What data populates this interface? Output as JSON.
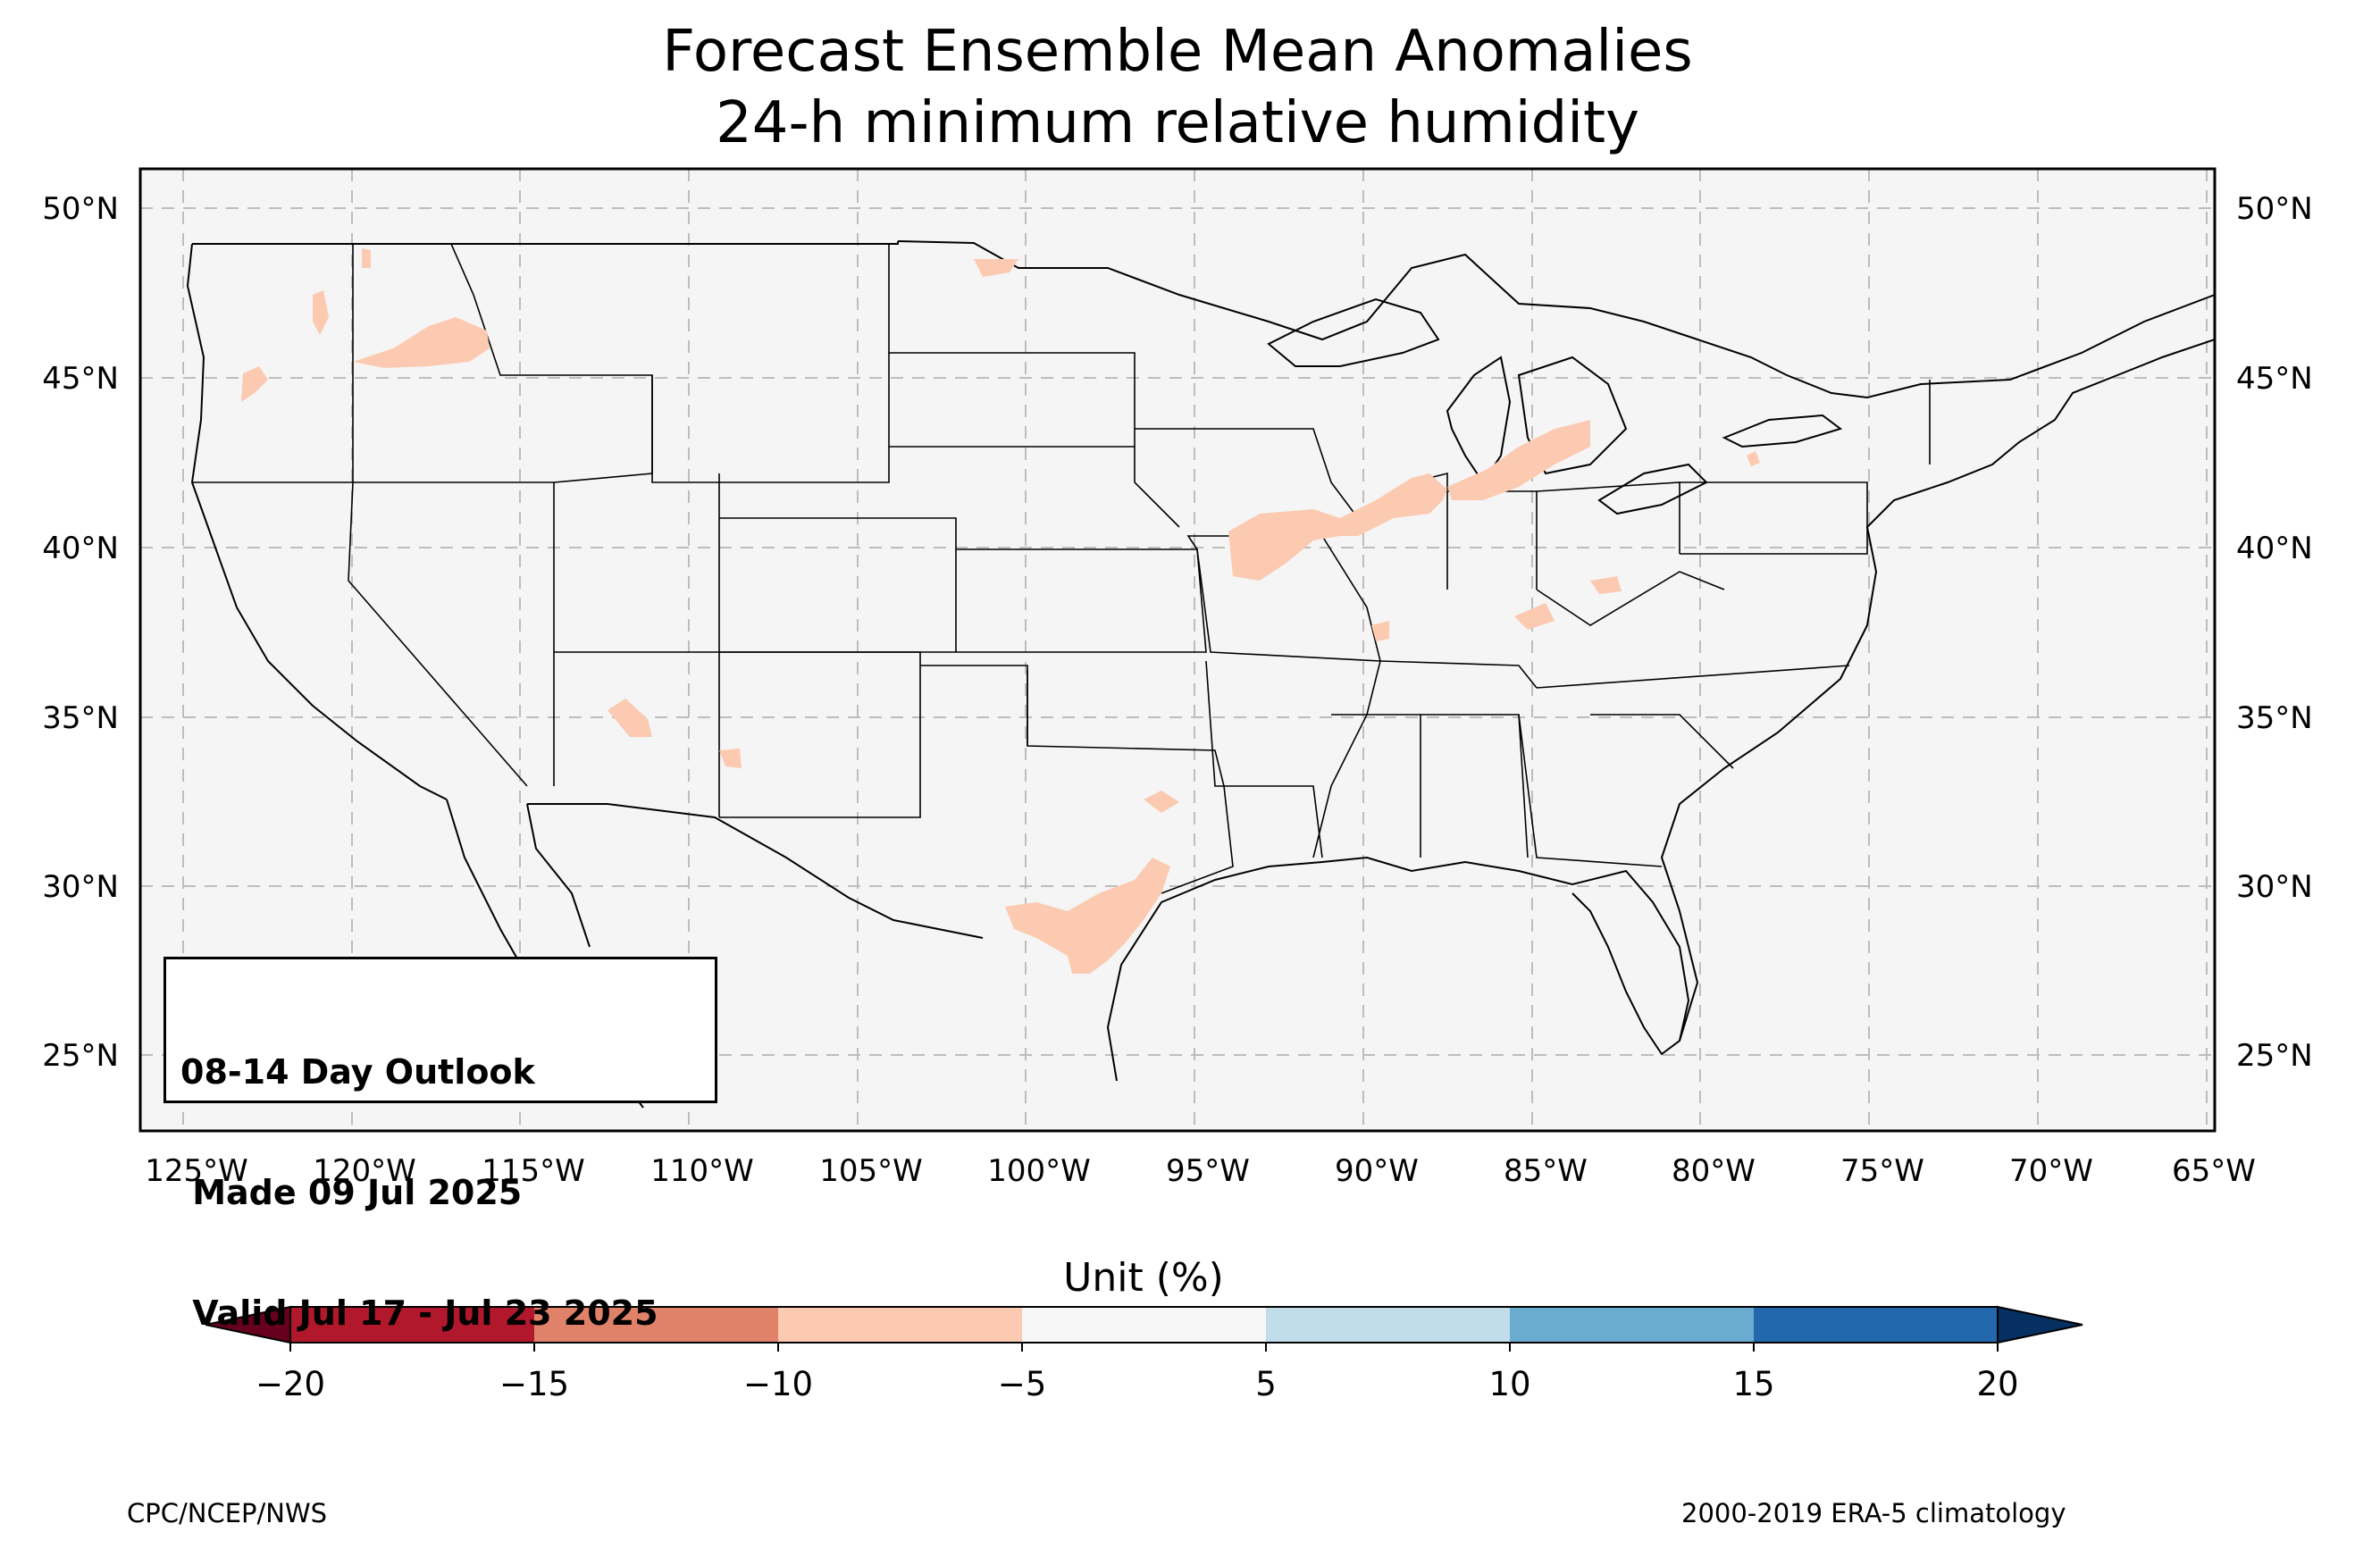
{
  "title": "Forecast Ensemble Mean Anomalies",
  "subtitle": "24-h minimum relative humidity",
  "outlook": {
    "line1": "08-14 Day Outlook",
    "line2": " Made 09 Jul 2025",
    "line3": " Valid Jul 17 - Jul 23 2025"
  },
  "lat_labels": [
    "50°N",
    "45°N",
    "40°N",
    "35°N",
    "30°N",
    "25°N"
  ],
  "lon_labels": [
    "125°W",
    "120°W",
    "115°W",
    "110°W",
    "105°W",
    "100°W",
    "95°W",
    "90°W",
    "85°W",
    "80°W",
    "75°W",
    "70°W",
    "65°W"
  ],
  "colorbar": {
    "title": "Unit (%)",
    "ticks": [
      "−20",
      "−15",
      "−10",
      "−5",
      "5",
      "10",
      "15",
      "20"
    ],
    "colors": [
      "#b2182b",
      "#e0826a",
      "#fbcab1",
      "#f7f7f7",
      "#c1dceb",
      "#6aacd0",
      "#2367ac"
    ],
    "under_color": "#67001f",
    "over_color": "#053061"
  },
  "footer_left": "CPC/NCEP/NWS",
  "footer_right": "2000-2019 ERA-5 climatology",
  "map_background_color": "#f5f5f5",
  "anomaly_color": "#fbcab1"
}
